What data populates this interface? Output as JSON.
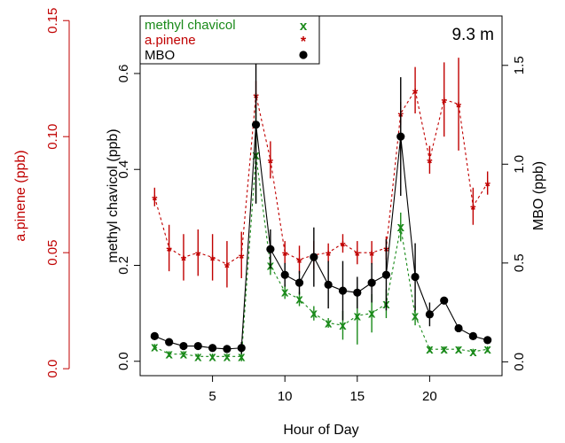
{
  "chart_data": {
    "type": "line",
    "annotation": "9.3 m",
    "xlabel": "Hour of Day",
    "x_ticks": [
      "5",
      "10",
      "15",
      "20"
    ],
    "x_tick_values": [
      5,
      10,
      15,
      20
    ],
    "xlim": [
      0,
      25
    ],
    "axes": {
      "methyl_chavicol": {
        "label": "methyl chavicol (ppb)",
        "side": "left-inner",
        "color": "#000000",
        "ylim": [
          -0.03,
          0.72
        ],
        "ticks": [
          "0.0",
          "0.2",
          "0.4",
          "0.6"
        ],
        "tick_values": [
          0,
          0.2,
          0.4,
          0.6
        ]
      },
      "a_pinene": {
        "label": "a.pinene (ppb)",
        "side": "left-outer",
        "color": "#c00000",
        "ylim": [
          -0.003,
          0.152
        ],
        "ticks": [
          "0.0",
          "0.05",
          "0.10",
          "0.15"
        ],
        "tick_values": [
          0,
          0.05,
          0.1,
          0.15
        ]
      },
      "mbo": {
        "label": "MBO (ppb)",
        "side": "right",
        "color": "#000000",
        "ylim": [
          -0.07,
          1.75
        ],
        "ticks": [
          "0.0",
          "0.5",
          "1.0",
          "1.5"
        ],
        "tick_values": [
          0,
          0.5,
          1.0,
          1.5
        ]
      }
    },
    "series": [
      {
        "name": "methyl chavicol",
        "axis": "methyl_chavicol",
        "color": "#1a8a1a",
        "marker": "x",
        "line": "dashed",
        "x": [
          1,
          2,
          3,
          4,
          5,
          6,
          7,
          8,
          9,
          10,
          11,
          12,
          13,
          14,
          15,
          16,
          17,
          18,
          19,
          20,
          21,
          22,
          23,
          24
        ],
        "y": [
          0.03,
          0.015,
          0.015,
          0.01,
          0.01,
          0.01,
          0.01,
          0.43,
          0.2,
          0.145,
          0.13,
          0.1,
          0.08,
          0.075,
          0.095,
          0.1,
          0.12,
          0.28,
          0.095,
          0.025,
          0.025,
          0.025,
          0.02,
          0.025
        ],
        "err": [
          0.006,
          0.006,
          0.006,
          0.006,
          0.006,
          0.006,
          0.01,
          0.1,
          0.02,
          0.015,
          0.015,
          0.015,
          0.01,
          0.03,
          0.06,
          0.04,
          0.03,
          0.03,
          0.02,
          0.006,
          0.006,
          0.006,
          0.006,
          0.006
        ]
      },
      {
        "name": "a.pinene",
        "axis": "a_pinene",
        "color": "#c00000",
        "marker": "*",
        "line": "dashed",
        "x": [
          1,
          2,
          3,
          4,
          5,
          6,
          7,
          8,
          9,
          10,
          11,
          12,
          13,
          14,
          15,
          16,
          17,
          18,
          19,
          20,
          21,
          22,
          23,
          24
        ],
        "y": [
          0.074,
          0.052,
          0.048,
          0.05,
          0.048,
          0.045,
          0.049,
          0.118,
          0.09,
          0.05,
          0.047,
          0.049,
          0.05,
          0.054,
          0.05,
          0.05,
          0.052,
          0.11,
          0.12,
          0.09,
          0.116,
          0.114,
          0.07,
          0.08
        ],
        "err": [
          0.004,
          0.01,
          0.01,
          0.01,
          0.01,
          0.01,
          0.01,
          0.006,
          0.008,
          0.005,
          0.006,
          0.006,
          0.004,
          0.004,
          0.005,
          0.005,
          0.005,
          0.005,
          0.01,
          0.006,
          0.016,
          0.02,
          0.008,
          0.005
        ]
      },
      {
        "name": "MBO",
        "axis": "mbo",
        "color": "#000000",
        "marker": "dot",
        "line": "solid",
        "x": [
          1,
          2,
          3,
          4,
          5,
          6,
          7,
          8,
          9,
          10,
          11,
          12,
          13,
          14,
          15,
          16,
          17,
          18,
          19,
          20,
          21,
          22,
          23,
          24
        ],
        "y": [
          0.13,
          0.1,
          0.08,
          0.08,
          0.07,
          0.065,
          0.07,
          1.2,
          0.57,
          0.44,
          0.4,
          0.53,
          0.39,
          0.36,
          0.35,
          0.4,
          0.44,
          1.14,
          0.43,
          0.24,
          0.31,
          0.17,
          0.13,
          0.11
        ],
        "err": [
          0.006,
          0.006,
          0.006,
          0.006,
          0.006,
          0.006,
          0.03,
          0.4,
          0.1,
          0.06,
          0.06,
          0.15,
          0.12,
          0.15,
          0.08,
          0.1,
          0.18,
          0.3,
          0.17,
          0.06,
          0.006,
          0.006,
          0.006,
          0.006
        ]
      }
    ],
    "legend": {
      "placement": "top-left",
      "entries": [
        {
          "label": "methyl chavicol",
          "color": "#1a8a1a",
          "marker": "x"
        },
        {
          "label": "a.pinene",
          "color": "#c00000",
          "marker": "*"
        },
        {
          "label": "MBO",
          "color": "#000000",
          "marker": "dot"
        }
      ]
    }
  }
}
